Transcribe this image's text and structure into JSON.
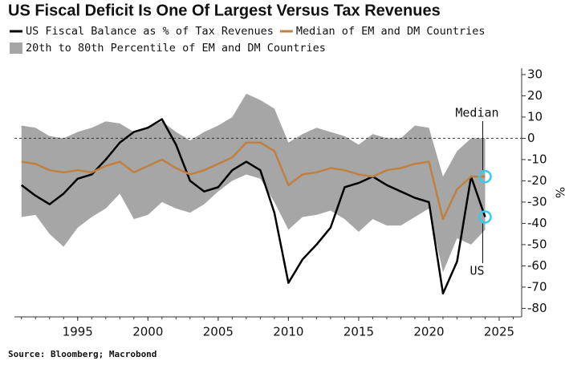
{
  "chart_data": {
    "type": "line",
    "title": "US Fiscal Deficit Is One Of Largest Versus Tax Revenues",
    "source": "Source: Bloomberg; Macrobond",
    "y_label": "%",
    "x": [
      1991,
      1992,
      1993,
      1994,
      1995,
      1996,
      1997,
      1998,
      1999,
      2000,
      2001,
      2002,
      2003,
      2004,
      2005,
      2006,
      2007,
      2008,
      2009,
      2010,
      2011,
      2012,
      2013,
      2014,
      2015,
      2016,
      2017,
      2018,
      2019,
      2020,
      2021,
      2022,
      2023,
      2024
    ],
    "series": [
      {
        "name": "US Fiscal Balance as % of Tax Revenues",
        "color": "#000000",
        "values": [
          -22,
          -27,
          -31,
          -26,
          -19,
          -17,
          -10,
          -2,
          3,
          5,
          9,
          -3,
          -20,
          -25,
          -23,
          -15,
          -11,
          -15,
          -35,
          -68,
          -57,
          -50,
          -42,
          -23,
          -21,
          -18,
          -22,
          -25,
          -28,
          -30,
          -73,
          -58,
          -18,
          -37
        ]
      },
      {
        "name": "Median of EM and DM Countries",
        "color": "#c08040",
        "values": [
          -11,
          -12,
          -15,
          -16,
          -15,
          -16,
          -13,
          -11,
          -16,
          -13,
          -10,
          -14,
          -17,
          -15,
          -12,
          -9,
          -2,
          -2,
          -6,
          -22,
          -17,
          -16,
          -14,
          -15,
          -17,
          -18,
          -15,
          -14,
          -12,
          -11,
          -38,
          -24,
          -18,
          -18
        ]
      },
      {
        "name": "20th to 80th Percentile of EM and DM Countries",
        "color": "#a6a6a6",
        "band": true,
        "upper": [
          6,
          5,
          1,
          0,
          3,
          5,
          8,
          7,
          3,
          5,
          8,
          3,
          -1,
          3,
          6,
          10,
          21,
          18,
          14,
          -2,
          2,
          5,
          3,
          1,
          -3,
          2,
          0,
          0,
          6,
          5,
          -18,
          -6,
          0,
          0
        ],
        "lower": [
          -37,
          -36,
          -45,
          -51,
          -42,
          -37,
          -33,
          -26,
          -38,
          -36,
          -30,
          -33,
          -35,
          -31,
          -25,
          -20,
          -17,
          -19,
          -30,
          -43,
          -37,
          -36,
          -34,
          -38,
          -44,
          -38,
          -41,
          -41,
          -37,
          -33,
          -63,
          -47,
          -50,
          -43
        ]
      }
    ],
    "annotations": [
      {
        "text": "Median",
        "series": 1
      },
      {
        "text": "US",
        "series": 0
      }
    ],
    "highlight_color": "#33ccee",
    "reference_line": 0,
    "xlim": [
      1990.5,
      2026.6
    ],
    "ylim": [
      -84,
      33
    ],
    "xticks": [
      1995,
      2000,
      2005,
      2010,
      2015,
      2020,
      2025
    ],
    "yticks": [
      30,
      20,
      10,
      0,
      -10,
      -20,
      -30,
      -40,
      -50,
      -60,
      -70,
      -80
    ],
    "y_axis_side": "right",
    "grid": false
  }
}
